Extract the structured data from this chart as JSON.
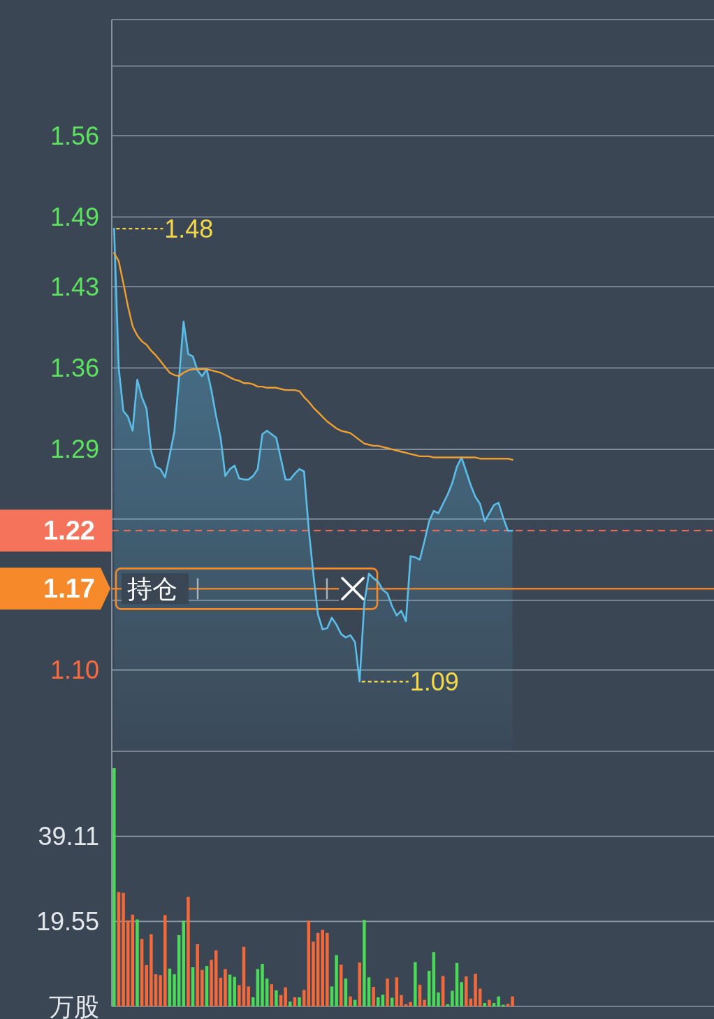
{
  "chart_data": [
    {
      "type": "line",
      "categories": [
        null,
        null,
        null,
        null,
        null,
        null,
        null,
        null,
        null,
        null,
        null,
        null,
        null,
        null,
        null,
        null,
        null,
        null,
        null,
        null,
        null,
        null,
        null,
        null,
        null,
        null,
        null,
        null,
        null,
        null,
        null,
        null,
        null,
        null,
        null,
        null,
        null,
        null,
        null,
        null,
        null,
        null,
        null,
        null,
        null,
        null,
        null,
        null,
        null,
        null,
        null,
        null,
        null,
        null,
        null,
        null,
        null,
        null,
        null,
        null,
        null,
        null,
        null,
        null,
        null,
        null,
        null,
        null,
        null,
        null,
        null,
        null,
        null,
        null,
        null,
        null,
        null,
        null,
        null,
        null,
        null,
        null,
        null,
        null,
        null,
        null,
        null,
        null,
        null,
        null,
        null,
        null,
        null,
        null,
        null,
        null,
        null,
        null,
        null,
        null,
        null,
        null,
        null,
        null,
        null,
        null,
        null,
        null,
        null,
        null,
        null,
        null,
        null,
        null,
        null,
        null,
        null,
        null,
        null,
        null,
        null,
        null,
        null,
        null,
        null,
        null,
        null,
        null,
        null,
        null
      ],
      "series": [
        {
          "type": "area",
          "color": "#5cbde8",
          "values": [
            1.48,
            1.36,
            1.323,
            1.318,
            1.306,
            1.35,
            1.335,
            1.325,
            1.288,
            1.275,
            1.273,
            1.266,
            1.285,
            1.305,
            1.35,
            1.4,
            1.372,
            1.37,
            1.358,
            1.353,
            1.359,
            1.341,
            1.319,
            1.3,
            1.267,
            1.273,
            1.276,
            1.265,
            1.264,
            1.264,
            1.267,
            1.273,
            1.303,
            1.306,
            1.303,
            1.3,
            1.282,
            1.264,
            1.264,
            1.269,
            1.273,
            1.271,
            1.222,
            1.183,
            1.148,
            1.135,
            1.136,
            1.145,
            1.139,
            1.131,
            1.128,
            1.13,
            1.124,
            1.09,
            1.157,
            1.183,
            1.179,
            1.176,
            1.169,
            1.166,
            1.155,
            1.147,
            1.151,
            1.142,
            1.198,
            1.197,
            1.195,
            1.211,
            1.228,
            1.237,
            1.235,
            1.243,
            1.251,
            1.261,
            1.275,
            1.283,
            1.271,
            1.259,
            1.249,
            1.243,
            1.228,
            1.235,
            1.242,
            1.244,
            1.231,
            1.22,
            1.22,
            null,
            null,
            null,
            null,
            null,
            null,
            null,
            null,
            null,
            null,
            null,
            null,
            null,
            null,
            null,
            null,
            null,
            null,
            null,
            null,
            null,
            null,
            null,
            null,
            null,
            null,
            null,
            null,
            null,
            null,
            null,
            null,
            null,
            null,
            null,
            null,
            null,
            null,
            null,
            null,
            null,
            null,
            null
          ]
        },
        {
          "type": "line",
          "color": "#f0a030",
          "values": [
            1.459,
            1.452,
            1.433,
            1.413,
            1.396,
            1.388,
            1.383,
            1.38,
            1.375,
            1.371,
            1.366,
            1.361,
            1.356,
            1.354,
            1.353,
            1.356,
            1.358,
            1.359,
            1.359,
            1.359,
            1.359,
            1.358,
            1.357,
            1.356,
            1.354,
            1.352,
            1.35,
            1.349,
            1.347,
            1.347,
            1.346,
            1.344,
            1.344,
            1.343,
            1.343,
            1.343,
            1.342,
            1.341,
            1.341,
            1.341,
            1.34,
            1.335,
            1.331,
            1.326,
            1.322,
            1.318,
            1.314,
            1.311,
            1.308,
            1.306,
            1.305,
            1.304,
            1.301,
            1.298,
            1.295,
            1.294,
            1.293,
            1.293,
            1.292,
            1.291,
            1.29,
            1.289,
            1.288,
            1.287,
            1.286,
            1.285,
            1.284,
            1.284,
            1.284,
            1.283,
            1.283,
            1.283,
            1.283,
            1.283,
            1.283,
            1.283,
            1.283,
            1.283,
            1.283,
            1.282,
            1.282,
            1.282,
            1.282,
            1.282,
            1.282,
            1.282,
            1.281,
            null,
            null,
            null,
            null,
            null,
            null,
            null,
            null,
            null,
            null,
            null,
            null,
            null,
            null,
            null,
            null,
            null,
            null,
            null,
            null,
            null,
            null,
            null,
            null,
            null,
            null,
            null,
            null,
            null,
            null,
            null,
            null,
            null,
            null,
            null,
            null,
            null,
            null,
            null,
            null,
            null,
            null,
            null
          ]
        }
      ],
      "ylim": [
        1.03,
        1.66
      ],
      "yticks": [
        {
          "value": 1.62,
          "label": null
        },
        1.56,
        1.49,
        1.43,
        1.36,
        1.29,
        {
          "value": 1.23,
          "label": null
        },
        {
          "value": 1.16,
          "label": null
        },
        {
          "value": 1.1,
          "label": "1.10"
        }
      ],
      "grid": "y",
      "tick_labels": "y",
      "ref_lines": [
        {
          "axis": "y",
          "value": 1.22,
          "label": "1.22",
          "color": "#f4735a",
          "line_style": "dashed"
        },
        {
          "axis": "y",
          "value": 1.17,
          "label": "1.17",
          "color": "#f68a2a",
          "line_style": "solid"
        }
      ],
      "annotations": [
        "1.48",
        "1.09",
        {
          "text": "持仓",
          "y": 1.17
        }
      ]
    },
    {
      "type": "bar",
      "categories": [
        null,
        null,
        null,
        null,
        null,
        null,
        null,
        null,
        null,
        null,
        null,
        null,
        null,
        null,
        null,
        null,
        null,
        null,
        null,
        null,
        null,
        null,
        null,
        null,
        null,
        null,
        null,
        null,
        null,
        null,
        null,
        null,
        null,
        null,
        null,
        null,
        null,
        null,
        null,
        null,
        null,
        null,
        null,
        null,
        null,
        null,
        null,
        null,
        null,
        null,
        null,
        null,
        null,
        null,
        null,
        null,
        null,
        null,
        null,
        null,
        null,
        null,
        null,
        null,
        null,
        null,
        null,
        null,
        null,
        null,
        null,
        null,
        null,
        null,
        null,
        null,
        null,
        null,
        null,
        null,
        null,
        null,
        null,
        null,
        null,
        null,
        null,
        null,
        null,
        null,
        null,
        null,
        null,
        null,
        null,
        null,
        null,
        null,
        null,
        null,
        null,
        null,
        null,
        null,
        null,
        null,
        null,
        null,
        null,
        null,
        null,
        null,
        null,
        null,
        null,
        null,
        null,
        null,
        null,
        null,
        null,
        null,
        null,
        null,
        null,
        null,
        null,
        null,
        null,
        null
      ],
      "values": [
        54.8,
        26.3,
        26.1,
        19.8,
        21.1,
        20.0,
        15.5,
        9.5,
        16.6,
        7.4,
        7.2,
        21.0,
        8.7,
        7.4,
        16.4,
        19.7,
        25.2,
        9.0,
        14.3,
        8.4,
        9.3,
        10.7,
        12.9,
        6.6,
        8.6,
        7.3,
        6.8,
        4.9,
        13.7,
        4.6,
        2.1,
        8.6,
        9.8,
        6.4,
        5.1,
        3.7,
        2.6,
        4.4,
        1.1,
        2.1,
        2.1,
        3.8,
        19.7,
        14.9,
        16.9,
        17.6,
        16.9,
        4.6,
        11.8,
        9.6,
        6.4,
        2.3,
        1.5,
        10.1,
        19.9,
        6.7,
        4.5,
        2.1,
        2.7,
        6.4,
        2.0,
        6.7,
        2.6,
        0.5,
        1.0,
        10.2,
        5.0,
        1.5,
        8.2,
        12.5,
        3.2,
        7.0,
        0.5,
        3.6,
        10.0,
        5.6,
        6.9,
        1.8,
        7.5,
        4.1,
        0.8,
        1.5,
        0.8,
        2.3,
        0.4,
        0.6,
        2.3,
        null,
        null,
        null,
        null,
        null,
        null,
        null,
        null,
        null,
        null,
        null,
        null,
        null,
        null,
        null,
        null,
        null,
        null,
        null,
        null,
        null,
        null,
        null,
        null,
        null,
        null,
        null,
        null,
        null,
        null,
        null,
        null,
        null,
        null,
        null,
        null,
        null,
        null,
        null,
        null,
        null,
        null,
        null
      ],
      "colors": [
        "#4cd95a",
        "#f26a3c",
        "#f26a3c",
        "#f26a3c",
        "#f26a3c",
        "#4cd95a",
        "#f26a3c",
        "#f26a3c",
        "#f26a3c",
        "#f26a3c",
        "#f26a3c",
        "#f26a3c",
        "#4cd95a",
        "#4cd95a",
        "#4cd95a",
        "#4cd95a",
        "#f26a3c",
        "#4cd95a",
        "#f26a3c",
        "#f26a3c",
        "#4cd95a",
        "#f26a3c",
        "#f26a3c",
        "#f26a3c",
        "#f26a3c",
        "#4cd95a",
        "#4cd95a",
        "#f26a3c",
        "#f26a3c",
        "#f26a3c",
        "#4cd95a",
        "#4cd95a",
        "#4cd95a",
        "#4cd95a",
        "#f26a3c",
        "#4cd95a",
        "#f26a3c",
        "#f26a3c",
        "#4cd95a",
        "#f26a3c",
        "#4cd95a",
        "#f26a3c",
        "#f26a3c",
        "#f26a3c",
        "#f26a3c",
        "#f26a3c",
        "#f26a3c",
        "#4cd95a",
        "#4cd95a",
        "#f26a3c",
        "#4cd95a",
        "#f26a3c",
        "#4cd95a",
        "#f26a3c",
        "#4cd95a",
        "#4cd95a",
        "#f26a3c",
        "#4cd95a",
        "#4cd95a",
        "#f26a3c",
        "#4cd95a",
        "#f26a3c",
        "#f26a3c",
        "#f26a3c",
        "#f26a3c",
        "#4cd95a",
        "#f26a3c",
        "#f26a3c",
        "#4cd95a",
        "#4cd95a",
        "#4cd95a",
        "#f26a3c",
        "#4cd95a",
        "#4cd95a",
        "#4cd95a",
        "#4cd95a",
        "#f26a3c",
        "#f26a3c",
        "#f26a3c",
        "#f26a3c",
        "#4cd95a",
        "#f26a3c",
        "#4cd95a",
        "#4cd95a",
        "#4cd95a",
        "#f26a3c",
        "#f26a3c",
        null,
        null,
        null,
        null,
        null,
        null,
        null,
        null,
        null,
        null,
        null,
        null,
        null,
        null,
        null,
        null,
        null,
        null,
        null,
        null,
        null,
        null,
        null,
        null,
        null,
        null,
        null,
        null,
        null,
        null,
        null,
        null,
        null,
        null,
        null,
        null,
        null,
        null,
        null,
        null,
        null,
        null,
        null
      ],
      "ylim": [
        0,
        58.66
      ],
      "yticks": [
        {
          "value": 0,
          "label": "万股"
        },
        19.55,
        39.11
      ],
      "grid": "y",
      "tick_labels": "y"
    }
  ]
}
